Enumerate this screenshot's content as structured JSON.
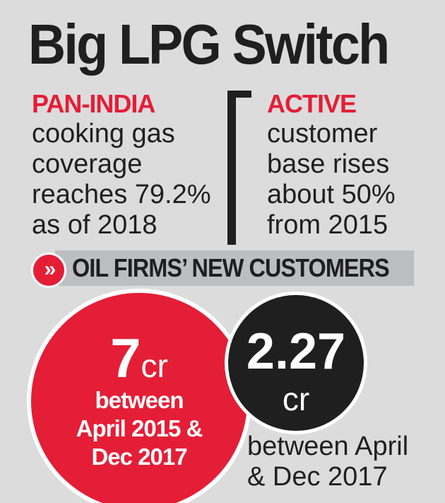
{
  "title": "Big LPG Switch",
  "left": {
    "head": "PAN-INDIA",
    "lines": [
      "cooking gas",
      "coverage",
      "reaches 79.2%",
      "as of 2018"
    ]
  },
  "right": {
    "head": "ACTIVE",
    "lines": [
      "customer",
      "base rises",
      "about 50%",
      "from 2015"
    ]
  },
  "section": {
    "icon": "double-chevron-right-icon",
    "label": "OIL FIRMS’ NEW CUSTOMERS"
  },
  "red_circle": {
    "value": "7",
    "unit": "cr",
    "lines": [
      "between",
      "April 2015 &",
      "Dec 2017"
    ]
  },
  "black_circle": {
    "value": "2.27",
    "unit": "cr",
    "caption": [
      "between April",
      "& Dec 2017"
    ]
  },
  "colors": {
    "accent": "#e41e36",
    "dark": "#1f1f20",
    "background": "#dcdcdd",
    "band": "#bdbec0"
  }
}
